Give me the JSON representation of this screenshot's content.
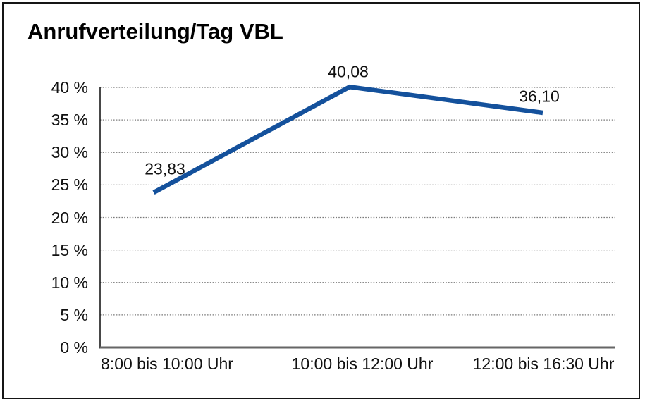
{
  "title": "Anrufverteilung/Tag VBL",
  "chart_data": {
    "type": "line",
    "title": "Anrufverteilung/Tag VBL",
    "categories": [
      "8:00 bis 10:00 Uhr",
      "10:00 bis 12:00 Uhr",
      "12:00 bis 16:30 Uhr"
    ],
    "values": [
      23.83,
      40.08,
      36.1
    ],
    "point_labels": [
      "23,83",
      "40,08",
      "36,10"
    ],
    "y_tick_labels": [
      "0 %",
      "5 %",
      "10 %",
      "15 %",
      "20 %",
      "25 %",
      "30 %",
      "35 %",
      "40 %"
    ],
    "ylim": [
      0,
      40
    ],
    "y_step": 5,
    "xlabel": "",
    "ylabel": "",
    "legend": "none",
    "grid": "horizontal-dotted",
    "line_color": "#14519C",
    "grid_color": "#7a7a7a",
    "y_axis_color": "#1a1a1a",
    "x_axis_color": "#666666"
  }
}
